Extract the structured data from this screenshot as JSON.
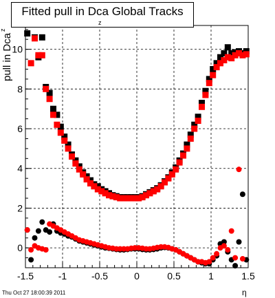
{
  "header": {
    "title": "Fitted pull in Dca Global Tracks",
    "title_subscript": "z"
  },
  "footer": {
    "timestamp": "Thu Oct 27 18:00:39 2011"
  },
  "chart_data": {
    "type": "scatter",
    "title": "Fitted pull in Dca Global Tracks",
    "xlabel": "η",
    "ylabel": "pull in Dca",
    "ylabel_subscript": "z",
    "xlim": [
      -1.5,
      1.5
    ],
    "ylim": [
      -1.0,
      11.2
    ],
    "xticks": [
      -1.5,
      -1,
      -0.5,
      0,
      0.5,
      1,
      1.5
    ],
    "xtick_labels": [
      "-1.5",
      "-1",
      "-0.5",
      "0",
      "0.5",
      "1",
      "1.5"
    ],
    "yticks": [
      0,
      2,
      4,
      6,
      8,
      10
    ],
    "ytick_labels": [
      "0",
      "2",
      "4",
      "6",
      "8",
      "10"
    ],
    "grid": true,
    "x": [
      -1.475,
      -1.425,
      -1.375,
      -1.325,
      -1.275,
      -1.225,
      -1.175,
      -1.125,
      -1.075,
      -1.025,
      -0.975,
      -0.925,
      -0.875,
      -0.825,
      -0.775,
      -0.725,
      -0.675,
      -0.625,
      -0.575,
      -0.525,
      -0.475,
      -0.425,
      -0.375,
      -0.325,
      -0.275,
      -0.225,
      -0.175,
      -0.125,
      -0.075,
      -0.025,
      0.025,
      0.075,
      0.125,
      0.175,
      0.225,
      0.275,
      0.325,
      0.375,
      0.425,
      0.475,
      0.525,
      0.575,
      0.625,
      0.675,
      0.725,
      0.775,
      0.825,
      0.875,
      0.925,
      0.975,
      1.025,
      1.075,
      1.125,
      1.175,
      1.225,
      1.275,
      1.325,
      1.375,
      1.425,
      1.475
    ],
    "series": [
      {
        "name": "",
        "marker": "square",
        "color": "#000000",
        "values": [
          10.8,
          null,
          10.6,
          9.6,
          10.6,
          8.1,
          7.8,
          7.0,
          6.7,
          6.1,
          5.6,
          5.2,
          4.7,
          4.4,
          4.1,
          3.8,
          3.6,
          3.4,
          3.2,
          3.1,
          2.95,
          2.85,
          2.75,
          2.65,
          2.6,
          2.55,
          2.55,
          2.55,
          2.55,
          2.55,
          2.55,
          2.6,
          2.7,
          2.8,
          2.9,
          3.0,
          3.15,
          3.35,
          3.55,
          3.8,
          4.05,
          4.4,
          4.75,
          5.2,
          5.7,
          6.2,
          6.6,
          7.3,
          7.9,
          8.5,
          9.0,
          9.3,
          9.6,
          9.8,
          10.1,
          9.8,
          9.85,
          9.9,
          9.8,
          9.9
        ]
      },
      {
        "name": "",
        "marker": "square",
        "color": "#ff0000",
        "values": [
          null,
          9.3,
          10.55,
          9.7,
          9.7,
          8.0,
          7.5,
          6.7,
          6.2,
          5.8,
          5.4,
          5.0,
          4.6,
          4.25,
          3.95,
          3.7,
          3.45,
          3.25,
          3.1,
          2.95,
          2.85,
          2.75,
          2.65,
          2.6,
          2.55,
          2.5,
          2.5,
          2.5,
          2.5,
          2.5,
          2.5,
          2.55,
          2.65,
          2.75,
          2.85,
          2.95,
          3.1,
          3.3,
          3.5,
          3.7,
          3.95,
          4.3,
          4.65,
          5.0,
          5.5,
          6.0,
          6.4,
          7.1,
          7.7,
          8.3,
          8.7,
          9.1,
          9.3,
          9.45,
          9.6,
          9.55,
          9.7,
          9.8,
          9.7,
          9.75
        ]
      },
      {
        "name": "",
        "marker": "circle",
        "color": "#000000",
        "values": [
          0.9,
          -0.6,
          0.5,
          0.85,
          1.3,
          0.9,
          0.8,
          1.2,
          0.85,
          0.75,
          0.7,
          0.6,
          0.55,
          0.45,
          0.35,
          0.3,
          0.25,
          0.2,
          0.15,
          0.1,
          0.05,
          0.0,
          -0.02,
          -0.05,
          -0.08,
          -0.1,
          -0.1,
          -0.08,
          -0.05,
          -0.05,
          -0.05,
          -0.08,
          -0.1,
          -0.1,
          -0.08,
          -0.05,
          0.0,
          0.02,
          0.0,
          -0.05,
          -0.1,
          -0.2,
          -0.3,
          -0.4,
          -0.5,
          -0.6,
          -0.7,
          -0.75,
          -0.8,
          -0.8,
          -0.6,
          -0.4,
          0.2,
          0.3,
          -0.2,
          -0.6,
          -0.9,
          0.3,
          2.7,
          -0.6
        ]
      },
      {
        "name": "",
        "marker": "circle",
        "color": "#ff0000",
        "values": [
          0.9,
          -0.1,
          0.1,
          0.0,
          -0.05,
          -0.1,
          1.2,
          1.1,
          1.0,
          0.9,
          0.8,
          0.7,
          0.6,
          0.5,
          0.4,
          0.35,
          0.3,
          0.25,
          0.2,
          0.15,
          0.1,
          0.05,
          0.0,
          -0.02,
          -0.05,
          -0.05,
          -0.05,
          -0.05,
          -0.02,
          0.0,
          0.0,
          -0.02,
          -0.05,
          -0.05,
          -0.02,
          0.02,
          0.05,
          0.05,
          0.02,
          -0.05,
          -0.1,
          -0.2,
          -0.3,
          -0.4,
          -0.5,
          -0.6,
          -0.7,
          -0.7,
          -0.75,
          -0.7,
          -0.5,
          -0.3,
          0.0,
          0.1,
          -0.1,
          0.85,
          -0.5,
          3.95,
          -0.55,
          null
        ]
      }
    ]
  }
}
